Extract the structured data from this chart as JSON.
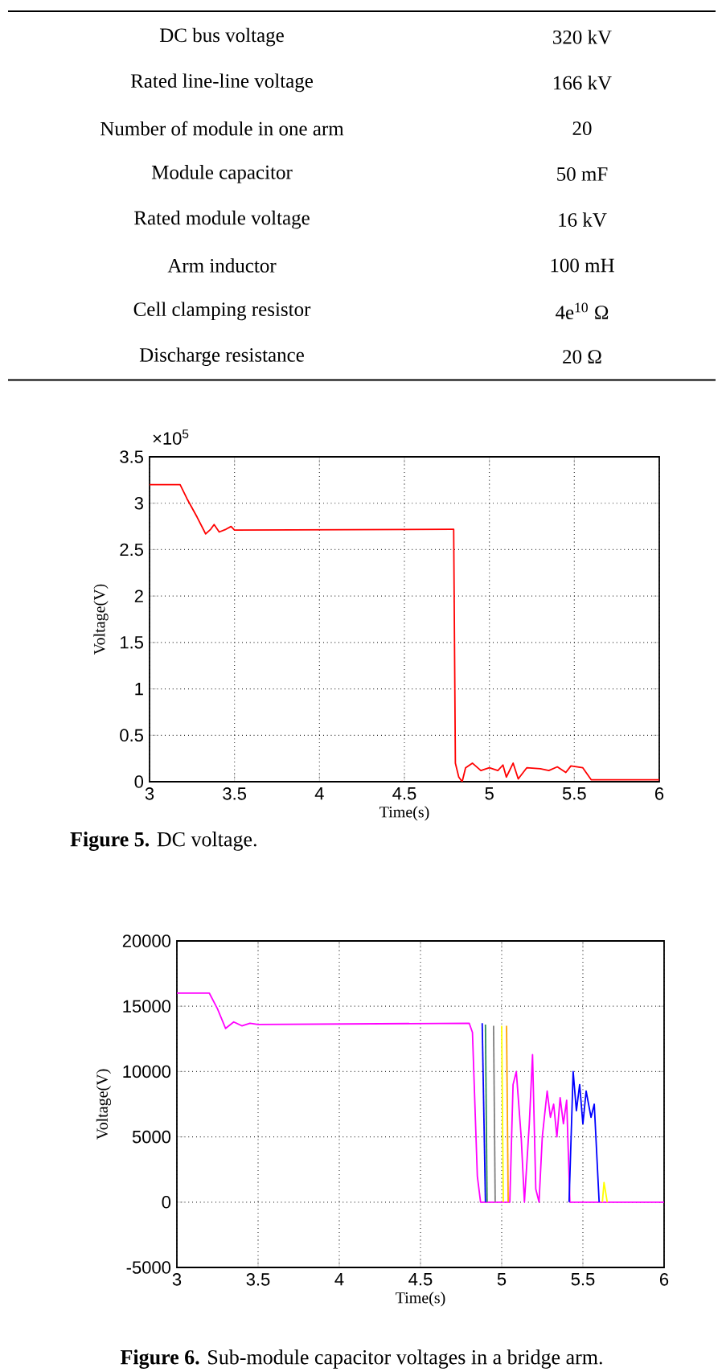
{
  "chart_data": [
    {
      "type": "other",
      "categories": [
        "DC bus voltage",
        "Rated line-line voltage",
        "Number of module in one arm",
        "Module capacitor",
        "Rated module voltage",
        "Arm inductor",
        "Cell clamping resistor",
        "Discharge resistance"
      ],
      "annotations": [
        "320 kV",
        "166 kV",
        "20",
        "50 mF",
        "16 kV",
        "100 mH",
        "4e$^{10}$ Ω",
        "20 Ω"
      ]
    },
    {
      "type": "line",
      "xlabel": "Time(s)",
      "ylabel": "Voltage(V)",
      "grid": true,
      "xlim": [
        3,
        6
      ],
      "xticks": [
        3,
        3.5,
        4,
        4.5,
        5,
        5.5,
        6
      ],
      "ylim": [
        0,
        3.5
      ],
      "yticks": [
        0,
        0.5,
        1,
        1.5,
        2,
        2.5,
        3,
        3.5
      ],
      "annotations": [
        "×10$^{5}$",
        "**Figure 5.** DC voltage."
      ],
      "series": [
        {
          "color": "#ff0000",
          "x": [
            3,
            3.18,
            3.22,
            3.28,
            3.33,
            3.36,
            3.38,
            3.41,
            3.45,
            3.48,
            3.5,
            4.78,
            4.79,
            4.8,
            4.82,
            4.84,
            4.86,
            4.9,
            4.95,
            5.0,
            5.05,
            5.08,
            5.1,
            5.14,
            5.17,
            5.22,
            5.3,
            5.35,
            5.4,
            5.45,
            5.48,
            5.55,
            5.6,
            6
          ],
          "values": [
            3.2,
            3.2,
            3.05,
            2.85,
            2.67,
            2.72,
            2.77,
            2.69,
            2.72,
            2.75,
            2.71,
            2.72,
            2.72,
            0.2,
            0.05,
            0.0,
            0.15,
            0.2,
            0.12,
            0.15,
            0.12,
            0.18,
            0.05,
            0.2,
            0.03,
            0.15,
            0.14,
            0.12,
            0.16,
            0.1,
            0.17,
            0.15,
            0.02,
            0.02
          ]
        }
      ]
    },
    {
      "type": "line",
      "xlabel": "Time(s)",
      "ylabel": "Voltage(V)",
      "grid": true,
      "xlim": [
        3,
        6
      ],
      "xticks": [
        3,
        3.5,
        4,
        4.5,
        5,
        5.5,
        6
      ],
      "ylim": [
        -5000,
        20000
      ],
      "yticks": [
        -5000,
        0,
        5000,
        10000,
        15000,
        20000
      ],
      "annotations": [
        "**Figure 6.** Sub-module capacitor voltages in a bridge arm."
      ],
      "series": [
        {
          "color": "#ff00ff",
          "x": [
            3,
            3.2,
            3.25,
            3.3,
            3.35,
            3.4,
            3.45,
            3.5,
            4.8,
            4.82,
            4.85,
            4.87,
            5.05,
            5.07,
            5.09,
            5.12,
            5.14,
            5.17,
            5.19,
            5.21,
            5.23,
            5.25,
            5.28,
            5.3,
            5.32,
            5.34,
            5.36,
            5.38,
            5.4,
            5.42,
            6
          ],
          "values": [
            16000,
            16000,
            14800,
            13300,
            13800,
            13500,
            13700,
            13600,
            13700,
            13000,
            2000,
            0,
            0,
            9000,
            10000,
            5000,
            0,
            6000,
            11300,
            1000,
            0,
            5000,
            8500,
            6500,
            7500,
            5000,
            8000,
            6000,
            7800,
            0,
            0
          ]
        },
        {
          "color": "#0000ff",
          "x": [
            4.88,
            4.9
          ],
          "values": [
            13700,
            0
          ]
        },
        {
          "color": "#0000ff",
          "x": [
            5.415,
            5.44,
            5.46,
            5.48,
            5.5,
            5.52,
            5.55,
            5.57,
            5.6
          ],
          "values": [
            0,
            10000,
            7000,
            9000,
            6000,
            8500,
            6500,
            7500,
            0
          ]
        },
        {
          "color": "#2e8b57",
          "x": [
            4.9,
            4.91
          ],
          "values": [
            13600,
            0
          ]
        },
        {
          "color": "#808080",
          "x": [
            4.95,
            4.96
          ],
          "values": [
            13500,
            0
          ]
        },
        {
          "color": "#ffa500",
          "x": [
            5.03,
            5.04
          ],
          "values": [
            13500,
            0
          ]
        },
        {
          "color": "#ffff00",
          "x": [
            5.0,
            5.01
          ],
          "values": [
            13500,
            0
          ]
        },
        {
          "color": "#ffff00",
          "x": [
            5.62,
            5.63,
            5.65
          ],
          "values": [
            0,
            1500,
            0
          ]
        }
      ]
    }
  ]
}
